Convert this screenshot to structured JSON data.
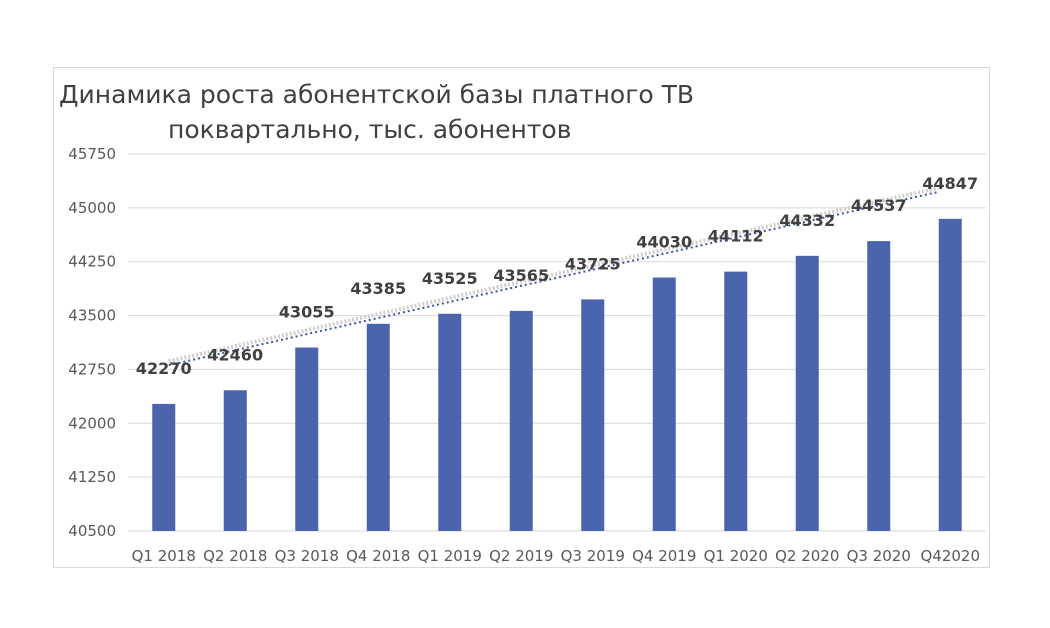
{
  "chart_data": {
    "type": "bar",
    "title_lines": [
      "Динамика роста абонентской базы платного ТВ",
      "поквартально, тыс. абонентов"
    ],
    "categories": [
      "Q1 2018",
      "Q2 2018",
      "Q3 2018",
      "Q4 2018",
      "Q1 2019",
      "Q2 2019",
      "Q3 2019",
      "Q4 2019",
      "Q1 2020",
      "Q2 2020",
      "Q3 2020",
      "Q42020"
    ],
    "values": [
      42270,
      42460,
      43055,
      43385,
      43525,
      43565,
      43725,
      44030,
      44112,
      44332,
      44537,
      44847
    ],
    "ylim": [
      40500,
      45750
    ],
    "yticks": [
      "40500",
      "41250",
      "42000",
      "42750",
      "43500",
      "44250",
      "45000",
      "45750"
    ],
    "grid": true,
    "trendlines": [
      "linear",
      "dotted"
    ],
    "legend": "none",
    "colors": {
      "bar": "#4a65ae",
      "trend_dark": "#3f55a0",
      "trend_light": "#cfcfcf",
      "grid": "#d9d9d9"
    }
  }
}
